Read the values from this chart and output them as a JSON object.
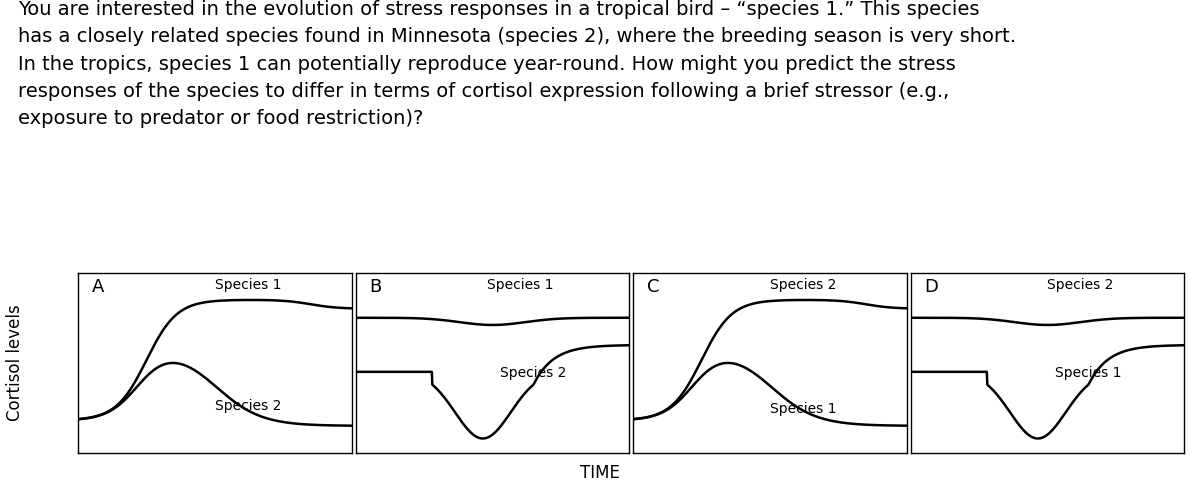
{
  "title_text": "You are interested in the evolution of stress responses in a tropical bird – “species 1.” This species\nhas a closely related species found in Minnesota (species 2), where the breeding season is very short.\nIn the tropics, species 1 can potentially reproduce year-round. How might you predict the stress\nresponses of the species to differ in terms of cortisol expression following a brief stressor (e.g.,\nexposure to predator or food restriction)?",
  "ylabel": "Cortisol levels",
  "xlabel": "TIME",
  "panels": [
    "A",
    "B",
    "C",
    "D"
  ],
  "panel_labels": {
    "A": {
      "top": "Species 1",
      "bottom": "Species 2"
    },
    "B": {
      "top": "Species 1",
      "bottom": "Species 2"
    },
    "C": {
      "top": "Species 2",
      "bottom": "Species 1"
    },
    "D": {
      "top": "Species 2",
      "bottom": "Species 1"
    }
  },
  "line_color": "#000000",
  "bg_color": "#ffffff",
  "title_fontsize": 14,
  "label_fontsize": 12,
  "panel_letter_fontsize": 13
}
